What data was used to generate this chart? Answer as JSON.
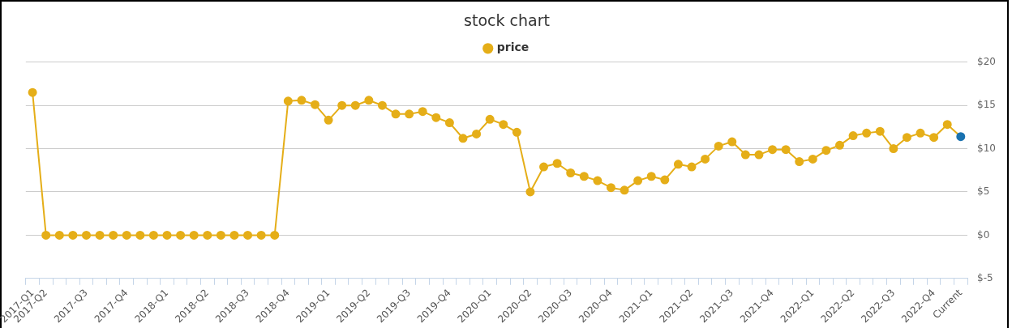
{
  "chart_data": {
    "type": "line",
    "title": "stock chart",
    "categories": [
      "2017-Q1",
      "2017-Q2",
      null,
      null,
      "2017-Q3",
      null,
      null,
      "2017-Q4",
      null,
      null,
      "2018-Q1",
      null,
      null,
      "2018-Q2",
      null,
      null,
      "2018-Q3",
      null,
      null,
      "2018-Q4",
      null,
      null,
      "2019-Q1",
      null,
      null,
      "2019-Q2",
      null,
      null,
      "2019-Q3",
      null,
      null,
      "2019-Q4",
      null,
      null,
      "2020-Q1",
      null,
      null,
      "2020-Q2",
      null,
      null,
      "2020-Q3",
      null,
      null,
      "2020-Q4",
      null,
      null,
      "2021-Q1",
      null,
      null,
      "2021-Q2",
      null,
      null,
      "2021-Q3",
      null,
      null,
      "2021-Q4",
      null,
      null,
      "2022-Q1",
      null,
      null,
      "2022-Q2",
      null,
      null,
      "2022-Q3",
      null,
      null,
      "2022-Q4",
      null,
      "Current"
    ],
    "series": [
      {
        "name": "price",
        "color": "#e5ae18",
        "colors": [
          "#e5ae18",
          "#e5ae18",
          "#e5ae18",
          "#e5ae18",
          "#e5ae18",
          "#e5ae18",
          "#e5ae18",
          "#e5ae18",
          "#e5ae18",
          "#e5ae18",
          "#e5ae18",
          "#e5ae18",
          "#e5ae18",
          "#e5ae18",
          "#e5ae18",
          "#e5ae18",
          "#e5ae18",
          "#e5ae18",
          "#e5ae18",
          "#e5ae18",
          "#e5ae18",
          "#e5ae18",
          "#e5ae18",
          "#e5ae18",
          "#e5ae18",
          "#e5ae18",
          "#e5ae18",
          "#e5ae18",
          "#e5ae18",
          "#e5ae18",
          "#e5ae18",
          "#e5ae18",
          "#e5ae18",
          "#e5ae18",
          "#e5ae18",
          "#e5ae18",
          "#e5ae18",
          "#e5ae18",
          "#e5ae18",
          "#e5ae18",
          "#e5ae18",
          "#e5ae18",
          "#e5ae18",
          "#e5ae18",
          "#e5ae18",
          "#e5ae18",
          "#e5ae18",
          "#e5ae18",
          "#e5ae18",
          "#e5ae18",
          "#e5ae18",
          "#e5ae18",
          "#e5ae18",
          "#e5ae18",
          "#e5ae18",
          "#e5ae18",
          "#e5ae18",
          "#e5ae18",
          "#e5ae18",
          "#e5ae18",
          "#e5ae18",
          "#e5ae18",
          "#e5ae18",
          "#e5ae18",
          "#e5ae18",
          "#e5ae18",
          "#e5ae18",
          "#e5ae18",
          "#e5ae18",
          "#1a72b0"
        ],
        "values": [
          16.5,
          0,
          0,
          0,
          0,
          0,
          0,
          0,
          0,
          0,
          0,
          0,
          0,
          0,
          0,
          0,
          0,
          0,
          0,
          15.5,
          15.6,
          15.1,
          13.3,
          15.0,
          15.0,
          15.6,
          15.0,
          14.0,
          14.0,
          14.3,
          13.6,
          13.0,
          11.2,
          11.7,
          13.4,
          12.8,
          11.9,
          5.0,
          7.9,
          8.3,
          7.2,
          6.8,
          6.3,
          5.5,
          5.2,
          6.3,
          6.8,
          6.4,
          8.2,
          7.9,
          8.8,
          10.3,
          10.8,
          9.3,
          9.3,
          9.9,
          9.9,
          8.5,
          8.8,
          9.8,
          10.4,
          11.5,
          11.8,
          12.0,
          10.0,
          11.3,
          11.8,
          11.3,
          12.8,
          11.4
        ]
      }
    ],
    "ylim": [
      -5,
      20
    ],
    "yticks": [
      {
        "value": -5,
        "label": "$-5"
      },
      {
        "value": 0,
        "label": "$0"
      },
      {
        "value": 5,
        "label": "$5"
      },
      {
        "value": 10,
        "label": "$10"
      },
      {
        "value": 15,
        "label": "$15"
      },
      {
        "value": 20,
        "label": "$20"
      }
    ],
    "grid": "y",
    "legend": "top",
    "marker": "circle",
    "line_style": "solid"
  }
}
